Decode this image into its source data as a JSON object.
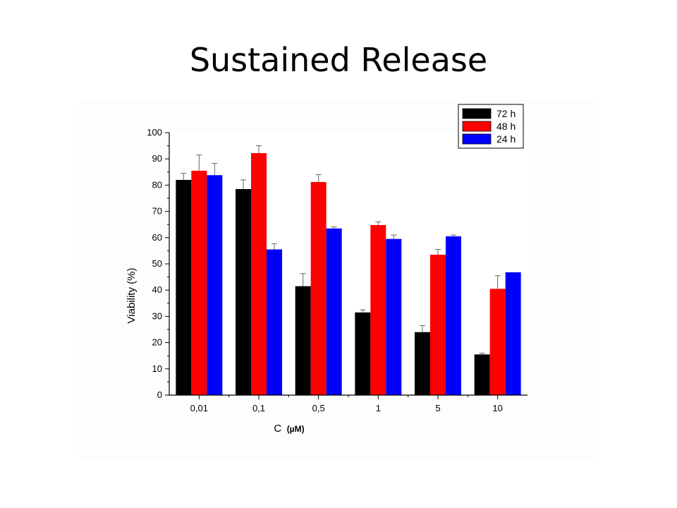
{
  "slide": {
    "title": "Sustained Release"
  },
  "chart_data": {
    "type": "bar",
    "title": "",
    "xlabel": "C",
    "xlabel_unit": "(µM)",
    "ylabel": "Viability (%)",
    "ylim": [
      0,
      100
    ],
    "yticks": [
      0,
      10,
      20,
      30,
      40,
      50,
      60,
      70,
      80,
      90,
      100
    ],
    "categories": [
      "0,01",
      "0,1",
      "0,5",
      "1",
      "5",
      "10"
    ],
    "series": [
      {
        "name": "72 h",
        "color": "#000000",
        "values": [
          82,
          78.5,
          41.5,
          31.5,
          24,
          15.5
        ],
        "errors": [
          2.5,
          3.5,
          4.8,
          1,
          2.5,
          0.5
        ]
      },
      {
        "name": "48 h",
        "color": "#ff0000",
        "values": [
          85.5,
          92.2,
          81.2,
          64.8,
          53.5,
          40.5
        ],
        "errors": [
          6,
          2.8,
          2.8,
          1.2,
          2,
          5
        ]
      },
      {
        "name": "24 h",
        "color": "#0000ff",
        "values": [
          83.8,
          55.5,
          63.5,
          59.5,
          60.5,
          46.8
        ],
        "errors": [
          4.5,
          2.2,
          0.6,
          1.5,
          0.5,
          0
        ]
      }
    ],
    "legend_position": "top-right",
    "grid": false
  }
}
